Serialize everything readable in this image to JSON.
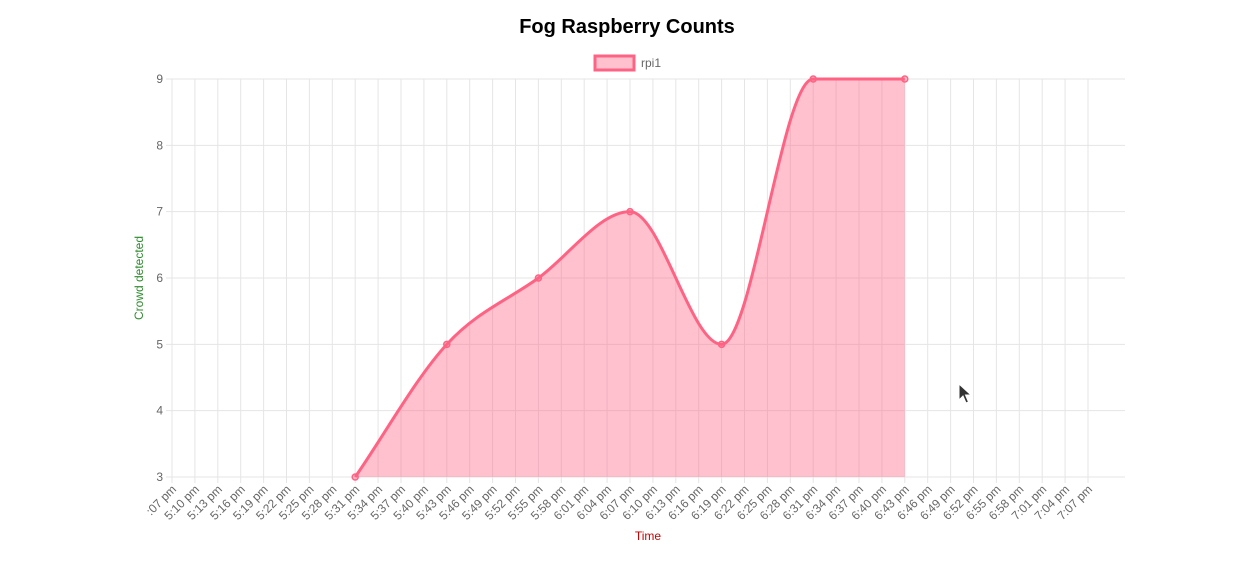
{
  "chart_data": {
    "type": "line",
    "title": "Fog Raspberry Counts",
    "xlabel": "Time",
    "ylabel": "Crowd detected",
    "ylim": [
      3,
      9
    ],
    "yticks": [
      3,
      4,
      5,
      6,
      7,
      8,
      9
    ],
    "grid": true,
    "legend": "top-center",
    "categories": [
      ":07 pm",
      "5:10 pm",
      "5:13 pm",
      "5:16 pm",
      "5:19 pm",
      "5:22 pm",
      "5:25 pm",
      "5:28 pm",
      "5:31 pm",
      "5:34 pm",
      "5:37 pm",
      "5:40 pm",
      "5:43 pm",
      "5:46 pm",
      "5:49 pm",
      "5:52 pm",
      "5:55 pm",
      "5:58 pm",
      "6:01 pm",
      "6:04 pm",
      "6:07 pm",
      "6:10 pm",
      "6:13 pm",
      "6:16 pm",
      "6:19 pm",
      "6:22 pm",
      "6:25 pm",
      "6:28 pm",
      "6:31 pm",
      "6:34 pm",
      "6:37 pm",
      "6:40 pm",
      "6:43 pm",
      "6:46 pm",
      "6:49 pm",
      "6:52 pm",
      "6:55 pm",
      "6:58 pm",
      "7:01 pm",
      "7:04 pm",
      "7:07 pm"
    ],
    "series": [
      {
        "name": "rpi1",
        "color": "#ff6384",
        "fill": "rgba(255, 99, 132, 0.4)",
        "points": [
          {
            "x": "5:31 pm",
            "y": 3
          },
          {
            "x": "5:43 pm",
            "y": 5
          },
          {
            "x": "5:55 pm",
            "y": 6
          },
          {
            "x": "6:07 pm",
            "y": 7
          },
          {
            "x": "6:19 pm",
            "y": 5
          },
          {
            "x": "6:31 pm",
            "y": 9
          },
          {
            "x": "6:43 pm",
            "y": 9
          }
        ]
      }
    ],
    "colors": {
      "xlabel": "#cc0000",
      "ylabel": "#2e8b2e"
    }
  }
}
